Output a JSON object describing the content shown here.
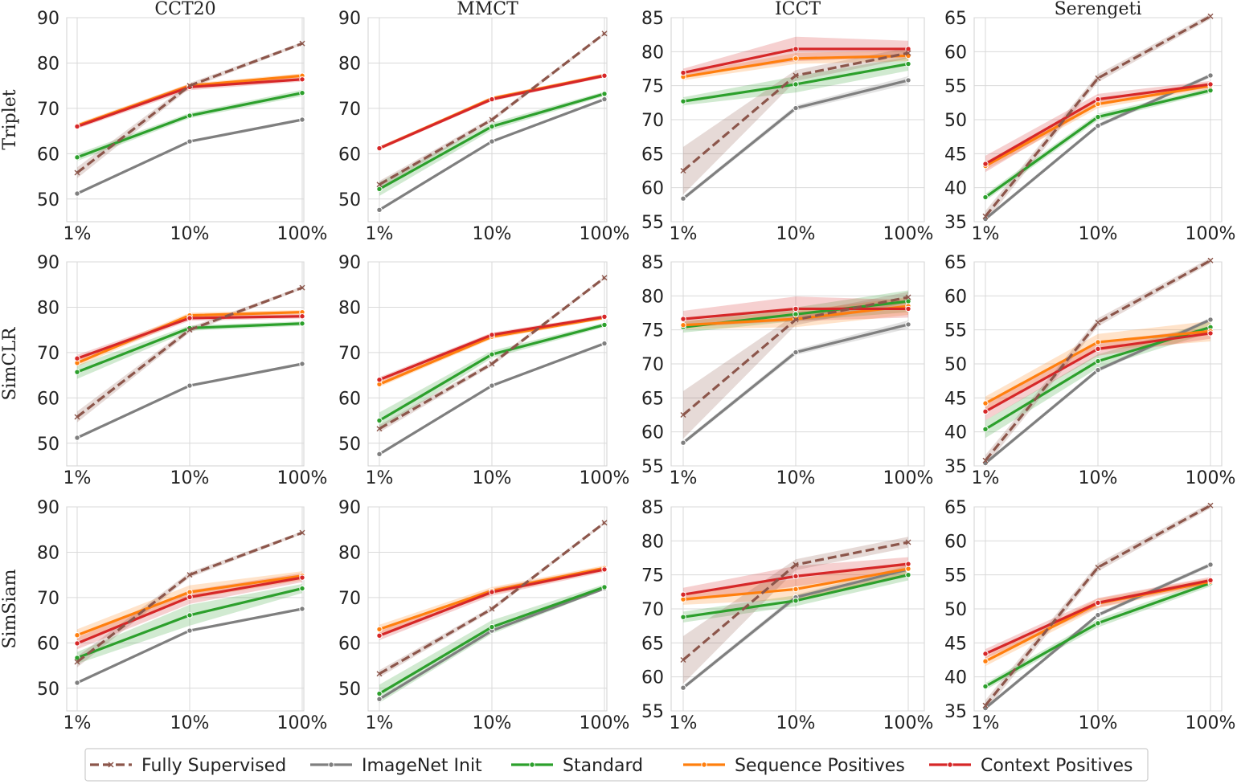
{
  "chart_data": {
    "type": "line",
    "title": "",
    "columns": [
      "CCT20",
      "MMCT",
      "ICCT",
      "Serengeti"
    ],
    "rows": [
      "Triplet",
      "SimCLR",
      "SimSiam"
    ],
    "x": [
      "1%",
      "10%",
      "100%"
    ],
    "xlabel": "",
    "ylabel": "",
    "ylim": {
      "CCT20": [
        45,
        90
      ],
      "MMCT": [
        45,
        90
      ],
      "ICCT": [
        55,
        85
      ],
      "Serengeti": [
        35,
        65
      ]
    },
    "yticks": {
      "CCT20": [
        50,
        60,
        70,
        80,
        90
      ],
      "MMCT": [
        50,
        60,
        70,
        80,
        90
      ],
      "ICCT": [
        55,
        60,
        65,
        70,
        75,
        80,
        85
      ],
      "Serengeti": [
        35,
        40,
        45,
        50,
        55,
        60,
        65
      ]
    },
    "legend": {
      "placement": "bottom-center",
      "entries": [
        {
          "name": "Fully Supervised",
          "color": "#8c564b",
          "dash": "dashed",
          "marker": "x"
        },
        {
          "name": "ImageNet Init",
          "color": "#7f7f7f",
          "dash": "solid",
          "marker": "dot"
        },
        {
          "name": "Standard",
          "color": "#2ca02c",
          "dash": "solid",
          "marker": "dot"
        },
        {
          "name": "Sequence Positives",
          "color": "#ff7f0e",
          "dash": "solid",
          "marker": "dot"
        },
        {
          "name": "Context Positives",
          "color": "#d62728",
          "dash": "solid",
          "marker": "dot"
        }
      ]
    },
    "panels": [
      {
        "row": "Triplet",
        "column": "CCT20",
        "series": [
          {
            "name": "Fully Supervised",
            "values": [
              55.8,
              75.0,
              84.3
            ],
            "band": [
              1.2,
              0.6,
              0.3
            ]
          },
          {
            "name": "ImageNet Init",
            "values": [
              51.2,
              62.7,
              67.5
            ],
            "band": [
              0.3,
              0.3,
              0.3
            ]
          },
          {
            "name": "Standard",
            "values": [
              59.2,
              68.4,
              73.4
            ],
            "band": [
              0.8,
              0.6,
              0.7
            ]
          },
          {
            "name": "Sequence Positives",
            "values": [
              66.2,
              75.0,
              77.2
            ],
            "band": [
              0.5,
              0.5,
              0.5
            ]
          },
          {
            "name": "Context Positives",
            "values": [
              66.0,
              74.7,
              76.4
            ],
            "band": [
              0.5,
              0.7,
              0.5
            ]
          }
        ]
      },
      {
        "row": "Triplet",
        "column": "MMCT",
        "series": [
          {
            "name": "Fully Supervised",
            "values": [
              53.2,
              67.5,
              86.5
            ],
            "band": [
              0.8,
              0.5,
              0.3
            ]
          },
          {
            "name": "ImageNet Init",
            "values": [
              47.6,
              62.7,
              72.0
            ],
            "band": [
              0.3,
              0.3,
              0.3
            ]
          },
          {
            "name": "Standard",
            "values": [
              52.2,
              66.0,
              73.2
            ],
            "band": [
              1.5,
              0.8,
              0.5
            ]
          },
          {
            "name": "Sequence Positives",
            "values": [
              61.2,
              72.2,
              77.3
            ],
            "band": [
              0.4,
              0.4,
              0.4
            ]
          },
          {
            "name": "Context Positives",
            "values": [
              61.2,
              72.0,
              77.2
            ],
            "band": [
              0.4,
              0.4,
              0.4
            ]
          }
        ]
      },
      {
        "row": "Triplet",
        "column": "ICCT",
        "series": [
          {
            "name": "Fully Supervised",
            "values": [
              62.5,
              76.5,
              79.8
            ],
            "band": [
              3.5,
              0.8,
              0.8
            ]
          },
          {
            "name": "ImageNet Init",
            "values": [
              58.4,
              71.7,
              75.8
            ],
            "band": [
              0.3,
              0.4,
              0.6
            ]
          },
          {
            "name": "Standard",
            "values": [
              72.7,
              75.2,
              78.2
            ],
            "band": [
              0.6,
              1.2,
              1.0
            ]
          },
          {
            "name": "Sequence Positives",
            "values": [
              76.3,
              79.0,
              79.4
            ],
            "band": [
              0.5,
              0.8,
              0.8
            ]
          },
          {
            "name": "Context Positives",
            "values": [
              76.9,
              80.4,
              80.4
            ],
            "band": [
              0.6,
              1.8,
              1.2
            ]
          }
        ]
      },
      {
        "row": "Triplet",
        "column": "Serengeti",
        "series": [
          {
            "name": "Fully Supervised",
            "values": [
              35.8,
              56.1,
              65.2
            ],
            "band": [
              0.8,
              0.6,
              0.4
            ]
          },
          {
            "name": "ImageNet Init",
            "values": [
              35.4,
              49.1,
              56.5
            ],
            "band": [
              0.3,
              0.3,
              0.3
            ]
          },
          {
            "name": "Standard",
            "values": [
              38.6,
              50.4,
              54.3
            ],
            "band": [
              0.5,
              0.5,
              0.4
            ]
          },
          {
            "name": "Sequence Positives",
            "values": [
              43.2,
              52.3,
              55.0
            ],
            "band": [
              0.6,
              0.6,
              0.5
            ]
          },
          {
            "name": "Context Positives",
            "values": [
              43.5,
              53.0,
              55.2
            ],
            "band": [
              1.2,
              0.8,
              0.5
            ]
          }
        ]
      },
      {
        "row": "SimCLR",
        "column": "CCT20",
        "series": [
          {
            "name": "Fully Supervised",
            "values": [
              55.8,
              75.0,
              84.3
            ],
            "band": [
              1.2,
              0.6,
              0.3
            ]
          },
          {
            "name": "ImageNet Init",
            "values": [
              51.2,
              62.7,
              67.5
            ],
            "band": [
              0.3,
              0.3,
              0.3
            ]
          },
          {
            "name": "Standard",
            "values": [
              65.7,
              75.4,
              76.4
            ],
            "band": [
              1.5,
              0.6,
              0.5
            ]
          },
          {
            "name": "Sequence Positives",
            "values": [
              67.7,
              78.2,
              78.9
            ],
            "band": [
              0.8,
              0.6,
              0.5
            ]
          },
          {
            "name": "Context Positives",
            "values": [
              68.7,
              77.6,
              78.0
            ],
            "band": [
              0.8,
              0.6,
              0.5
            ]
          }
        ]
      },
      {
        "row": "SimCLR",
        "column": "MMCT",
        "series": [
          {
            "name": "Fully Supervised",
            "values": [
              53.2,
              67.5,
              86.5
            ],
            "band": [
              0.8,
              0.5,
              0.3
            ]
          },
          {
            "name": "ImageNet Init",
            "values": [
              47.6,
              62.7,
              72.0
            ],
            "band": [
              0.3,
              0.3,
              0.3
            ]
          },
          {
            "name": "Standard",
            "values": [
              55.0,
              69.6,
              76.1
            ],
            "band": [
              1.8,
              0.8,
              0.5
            ]
          },
          {
            "name": "Sequence Positives",
            "values": [
              63.0,
              73.5,
              77.7
            ],
            "band": [
              0.6,
              0.5,
              0.4
            ]
          },
          {
            "name": "Context Positives",
            "values": [
              64.0,
              73.9,
              77.9
            ],
            "band": [
              0.6,
              0.5,
              0.4
            ]
          }
        ]
      },
      {
        "row": "SimCLR",
        "column": "ICCT",
        "series": [
          {
            "name": "Fully Supervised",
            "values": [
              62.5,
              76.5,
              79.8
            ],
            "band": [
              3.5,
              0.8,
              0.8
            ]
          },
          {
            "name": "ImageNet Init",
            "values": [
              58.4,
              71.7,
              75.8
            ],
            "band": [
              0.3,
              0.4,
              0.6
            ]
          },
          {
            "name": "Standard",
            "values": [
              75.4,
              77.3,
              79.2
            ],
            "band": [
              0.8,
              1.0,
              1.6
            ]
          },
          {
            "name": "Sequence Positives",
            "values": [
              75.7,
              76.6,
              78.5
            ],
            "band": [
              0.6,
              1.2,
              1.3
            ]
          },
          {
            "name": "Context Positives",
            "values": [
              76.6,
              78.1,
              78.1
            ],
            "band": [
              1.2,
              1.8,
              1.3
            ]
          }
        ]
      },
      {
        "row": "SimCLR",
        "column": "Serengeti",
        "series": [
          {
            "name": "Fully Supervised",
            "values": [
              35.8,
              56.1,
              65.2
            ],
            "band": [
              0.8,
              0.6,
              0.4
            ]
          },
          {
            "name": "ImageNet Init",
            "values": [
              35.4,
              49.1,
              56.5
            ],
            "band": [
              0.3,
              0.3,
              0.3
            ]
          },
          {
            "name": "Standard",
            "values": [
              40.4,
              50.4,
              55.4
            ],
            "band": [
              1.3,
              1.0,
              0.8
            ]
          },
          {
            "name": "Sequence Positives",
            "values": [
              44.2,
              53.2,
              54.8
            ],
            "band": [
              1.0,
              1.2,
              1.5
            ]
          },
          {
            "name": "Context Positives",
            "values": [
              43.0,
              52.2,
              54.5
            ],
            "band": [
              1.3,
              1.0,
              0.8
            ]
          }
        ]
      },
      {
        "row": "SimSiam",
        "column": "CCT20",
        "series": [
          {
            "name": "Fully Supervised",
            "values": [
              55.8,
              75.0,
              84.3
            ],
            "band": [
              1.2,
              0.6,
              0.3
            ]
          },
          {
            "name": "ImageNet Init",
            "values": [
              51.2,
              62.7,
              67.5
            ],
            "band": [
              0.3,
              0.3,
              0.3
            ]
          },
          {
            "name": "Standard",
            "values": [
              56.7,
              66.1,
              72.0
            ],
            "band": [
              1.3,
              2.3,
              1.0
            ]
          },
          {
            "name": "Sequence Positives",
            "values": [
              61.7,
              71.2,
              74.8
            ],
            "band": [
              1.3,
              1.5,
              1.0
            ]
          },
          {
            "name": "Context Positives",
            "values": [
              59.9,
              70.1,
              74.4
            ],
            "band": [
              1.3,
              1.5,
              1.0
            ]
          }
        ]
      },
      {
        "row": "SimSiam",
        "column": "MMCT",
        "series": [
          {
            "name": "Fully Supervised",
            "values": [
              53.2,
              67.5,
              86.5
            ],
            "band": [
              0.8,
              0.5,
              0.3
            ]
          },
          {
            "name": "ImageNet Init",
            "values": [
              47.6,
              62.7,
              72.0
            ],
            "band": [
              0.3,
              0.3,
              0.3
            ]
          },
          {
            "name": "Standard",
            "values": [
              48.8,
              63.5,
              72.3
            ],
            "band": [
              2.0,
              1.5,
              0.6
            ]
          },
          {
            "name": "Sequence Positives",
            "values": [
              63.0,
              71.5,
              76.5
            ],
            "band": [
              1.0,
              0.8,
              0.6
            ]
          },
          {
            "name": "Context Positives",
            "values": [
              61.6,
              71.2,
              76.2
            ],
            "band": [
              1.0,
              0.8,
              0.6
            ]
          }
        ]
      },
      {
        "row": "SimSiam",
        "column": "ICCT",
        "series": [
          {
            "name": "Fully Supervised",
            "values": [
              62.5,
              76.5,
              79.8
            ],
            "band": [
              3.5,
              0.8,
              0.8
            ]
          },
          {
            "name": "ImageNet Init",
            "values": [
              58.4,
              71.7,
              75.8
            ],
            "band": [
              0.3,
              0.4,
              0.6
            ]
          },
          {
            "name": "Standard",
            "values": [
              68.8,
              71.2,
              75.0
            ],
            "band": [
              0.8,
              0.8,
              0.8
            ]
          },
          {
            "name": "Sequence Positives",
            "values": [
              71.4,
              72.9,
              75.9
            ],
            "band": [
              0.8,
              1.5,
              1.0
            ]
          },
          {
            "name": "Context Positives",
            "values": [
              72.1,
              74.8,
              76.6
            ],
            "band": [
              1.0,
              1.5,
              1.0
            ]
          }
        ]
      },
      {
        "row": "SimSiam",
        "column": "Serengeti",
        "series": [
          {
            "name": "Fully Supervised",
            "values": [
              35.8,
              56.1,
              65.2
            ],
            "band": [
              0.8,
              0.6,
              0.4
            ]
          },
          {
            "name": "ImageNet Init",
            "values": [
              35.4,
              49.1,
              56.5
            ],
            "band": [
              0.3,
              0.3,
              0.3
            ]
          },
          {
            "name": "Standard",
            "values": [
              38.6,
              47.9,
              53.8
            ],
            "band": [
              0.5,
              0.6,
              0.5
            ]
          },
          {
            "name": "Sequence Positives",
            "values": [
              42.3,
              50.8,
              54.0
            ],
            "band": [
              0.7,
              0.7,
              0.5
            ]
          },
          {
            "name": "Context Positives",
            "values": [
              43.4,
              50.9,
              54.2
            ],
            "band": [
              0.7,
              0.7,
              0.5
            ]
          }
        ]
      }
    ]
  }
}
